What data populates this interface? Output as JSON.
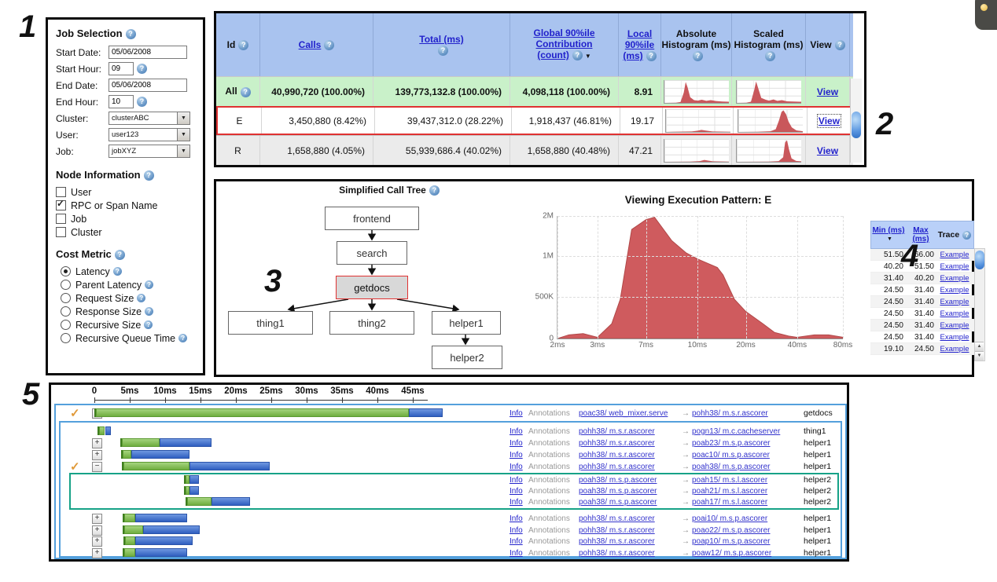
{
  "ui": {
    "help_glyph": "?",
    "check_glyph": "✓",
    "sort_glyph": "▼",
    "dropdown_glyph": "▼",
    "scroll_up_glyph": "▲",
    "scroll_down_glyph": "▼",
    "arrow_glyph": "→"
  },
  "figure_numbers": {
    "one": "1",
    "two": "2",
    "three": "3",
    "four": "4",
    "five": "5"
  },
  "job_selection": {
    "title": "Job Selection",
    "start_date": {
      "label": "Start Date:",
      "value": "05/06/2008"
    },
    "start_hour": {
      "label": "Start Hour:",
      "value": "09"
    },
    "end_date": {
      "label": "End Date:",
      "value": "05/06/2008"
    },
    "end_hour": {
      "label": "End Hour:",
      "value": "10"
    },
    "cluster": {
      "label": "Cluster:",
      "value": "clusterABC"
    },
    "user": {
      "label": "User:",
      "value": "user123"
    },
    "job": {
      "label": "Job:",
      "value": "jobXYZ"
    }
  },
  "node_information": {
    "title": "Node Information",
    "options": [
      {
        "label": "User",
        "checked": false
      },
      {
        "label": "RPC or Span Name",
        "checked": true
      },
      {
        "label": "Job",
        "checked": false
      },
      {
        "label": "Cluster",
        "checked": false
      }
    ]
  },
  "cost_metric": {
    "title": "Cost Metric",
    "options": [
      {
        "label": "Latency",
        "selected": true
      },
      {
        "label": "Parent Latency",
        "selected": false
      },
      {
        "label": "Request Size",
        "selected": false
      },
      {
        "label": "Response Size",
        "selected": false
      },
      {
        "label": "Recursive Size",
        "selected": false
      },
      {
        "label": "Recursive Queue Time",
        "selected": false
      }
    ]
  },
  "summary_table": {
    "headers": {
      "id": "Id",
      "calls": "Calls",
      "total": "Total (ms)",
      "global": "Global 90%ile Contribution (count)",
      "local": "Local 90%ile (ms)",
      "abs": "Absolute Histogram (ms)",
      "scaled": "Scaled Histogram (ms)",
      "view": "View"
    },
    "rows": [
      {
        "id": "All",
        "calls": "40,990,720 (100.00%)",
        "total": "139,773,132.8 (100.00%)",
        "global": "4,098,118 (100.00%)",
        "local": "8.91",
        "view": "View",
        "abs_hist": [
          [
            0,
            100
          ],
          [
            18,
            99
          ],
          [
            25,
            96
          ],
          [
            30,
            55
          ],
          [
            33,
            8
          ],
          [
            36,
            32
          ],
          [
            40,
            75
          ],
          [
            46,
            88
          ],
          [
            52,
            90
          ],
          [
            58,
            86
          ],
          [
            65,
            91
          ],
          [
            72,
            88
          ],
          [
            80,
            92
          ],
          [
            90,
            94
          ],
          [
            100,
            95
          ],
          [
            100,
            100
          ]
        ],
        "scaled_hist": [
          [
            0,
            100
          ],
          [
            15,
            99
          ],
          [
            22,
            95
          ],
          [
            27,
            45
          ],
          [
            30,
            6
          ],
          [
            34,
            42
          ],
          [
            38,
            78
          ],
          [
            45,
            86
          ],
          [
            50,
            90
          ],
          [
            57,
            85
          ],
          [
            63,
            91
          ],
          [
            70,
            88
          ],
          [
            78,
            93
          ],
          [
            100,
            95
          ],
          [
            100,
            100
          ]
        ]
      },
      {
        "id": "E",
        "calls": "3,450,880 (8.42%)",
        "total": "39,437,312.0 (28.22%)",
        "global": "1,918,437 (46.81%)",
        "local": "19.17",
        "view": "View",
        "abs_hist": [
          [
            0,
            100
          ],
          [
            10,
            99
          ],
          [
            40,
            98
          ],
          [
            48,
            95
          ],
          [
            55,
            91
          ],
          [
            62,
            94
          ],
          [
            72,
            98
          ],
          [
            100,
            99
          ],
          [
            100,
            100
          ]
        ],
        "scaled_hist": [
          [
            0,
            100
          ],
          [
            30,
            99
          ],
          [
            50,
            97
          ],
          [
            58,
            88
          ],
          [
            63,
            50
          ],
          [
            67,
            12
          ],
          [
            70,
            5
          ],
          [
            74,
            22
          ],
          [
            78,
            55
          ],
          [
            83,
            80
          ],
          [
            90,
            93
          ],
          [
            100,
            97
          ],
          [
            100,
            100
          ]
        ]
      },
      {
        "id": "R",
        "calls": "1,658,880 (4.05%)",
        "total": "55,939,686.4 (40.02%)",
        "global": "1,658,880 (40.48%)",
        "local": "47.21",
        "view": "View",
        "abs_hist": [
          [
            0,
            100
          ],
          [
            40,
            99
          ],
          [
            55,
            97
          ],
          [
            62,
            92
          ],
          [
            68,
            95
          ],
          [
            75,
            98
          ],
          [
            100,
            99
          ],
          [
            100,
            100
          ]
        ],
        "scaled_hist": [
          [
            0,
            100
          ],
          [
            50,
            99
          ],
          [
            65,
            97
          ],
          [
            72,
            80
          ],
          [
            75,
            15
          ],
          [
            78,
            5
          ],
          [
            81,
            45
          ],
          [
            85,
            85
          ],
          [
            92,
            96
          ],
          [
            100,
            98
          ],
          [
            100,
            100
          ]
        ]
      }
    ],
    "partial_row": {
      "abs_hist": [
        [
          0,
          100
        ],
        [
          30,
          100
        ],
        [
          33,
          10
        ],
        [
          37,
          100
        ]
      ],
      "scaled_hist": [
        [
          0,
          100
        ],
        [
          40,
          100
        ],
        [
          44,
          5
        ],
        [
          48,
          100
        ]
      ]
    }
  },
  "call_tree": {
    "title": "Simplified Call Tree",
    "nodes": {
      "frontend": "frontend",
      "search": "search",
      "getdocs": "getdocs",
      "thing1": "thing1",
      "thing2": "thing2",
      "helper1": "helper1",
      "helper2": "helper2"
    }
  },
  "chart_data": {
    "type": "area",
    "title": "Viewing Execution Pattern: E",
    "x_ticks": [
      {
        "label": "2ms",
        "pos": 0
      },
      {
        "label": "3ms",
        "pos": 14
      },
      {
        "label": "7ms",
        "pos": 31
      },
      {
        "label": "10ms",
        "pos": 49
      },
      {
        "label": "20ms",
        "pos": 66
      },
      {
        "label": "40ms",
        "pos": 84
      },
      {
        "label": "80ms",
        "pos": 100
      }
    ],
    "y_ticks": [
      {
        "label": "2M",
        "pos": 0
      },
      {
        "label": "1M",
        "pos": 33
      },
      {
        "label": "500K",
        "pos": 66
      },
      {
        "label": "0",
        "pos": 100
      }
    ],
    "x_scale": "log",
    "ylim": [
      0,
      2000000
    ],
    "points": [
      [
        0,
        100
      ],
      [
        4,
        97
      ],
      [
        9,
        96
      ],
      [
        14,
        99
      ],
      [
        19,
        88
      ],
      [
        22,
        68
      ],
      [
        26,
        11
      ],
      [
        31,
        3
      ],
      [
        34,
        1
      ],
      [
        40,
        20
      ],
      [
        45,
        30
      ],
      [
        49,
        35
      ],
      [
        52,
        38
      ],
      [
        56,
        42
      ],
      [
        58,
        48
      ],
      [
        62,
        68
      ],
      [
        66,
        78
      ],
      [
        72,
        88
      ],
      [
        76,
        95
      ],
      [
        81,
        98
      ],
      [
        84,
        99
      ],
      [
        90,
        97
      ],
      [
        95,
        97
      ],
      [
        100,
        99
      ],
      [
        100,
        100
      ]
    ]
  },
  "trace_table": {
    "headers": {
      "min": "Min (ms)",
      "max": "Max (ms)",
      "trace": "Trace"
    },
    "rows": [
      {
        "min": "51.50",
        "max": "66.00",
        "trace": "Example"
      },
      {
        "min": "40.20",
        "max": "51.50",
        "trace": "Example"
      },
      {
        "min": "31.40",
        "max": "40.20",
        "trace": "Example"
      },
      {
        "min": "24.50",
        "max": "31.40",
        "trace": "Example"
      },
      {
        "min": "24.50",
        "max": "31.40",
        "trace": "Example"
      },
      {
        "min": "24.50",
        "max": "31.40",
        "trace": "Example"
      },
      {
        "min": "24.50",
        "max": "31.40",
        "trace": "Example"
      },
      {
        "min": "24.50",
        "max": "31.40",
        "trace": "Example"
      },
      {
        "min": "19.10",
        "max": "24.50",
        "trace": "Example"
      }
    ]
  },
  "timeline": {
    "info_label": "Info",
    "annotations_label": "Annotations",
    "axis_ticks": [
      {
        "label": "0",
        "ms": 0
      },
      {
        "label": "5ms",
        "ms": 5
      },
      {
        "label": "10ms",
        "ms": 10
      },
      {
        "label": "15ms",
        "ms": 15
      },
      {
        "label": "20ms",
        "ms": 20
      },
      {
        "label": "25ms",
        "ms": 25
      },
      {
        "label": "30ms",
        "ms": 30
      },
      {
        "label": "35ms",
        "ms": 35
      },
      {
        "label": "40ms",
        "ms": 40
      },
      {
        "label": "45ms",
        "ms": 45
      }
    ],
    "rows": [
      {
        "check": true,
        "expander": "−",
        "g0": 0.2,
        "g1": 44.4,
        "b1": 49.2,
        "src": "poac38/ web_mixer.serve",
        "dst": "pohh38/ m.s.r.ascorer",
        "name": "getdocs"
      },
      {
        "check": false,
        "expander": "",
        "g0": 0.7,
        "g1": 1.5,
        "b1": 2.3,
        "src": "pohh38/ m.s.r.ascorer",
        "dst": "pogn13/ m.c.cacheserver",
        "name": "thing1"
      },
      {
        "check": false,
        "expander": "+",
        "g0": 3.9,
        "g1": 9.2,
        "b1": 16.6,
        "src": "pohh38/ m.s.r.ascorer",
        "dst": "poab23/ m.s.p.ascorer",
        "name": "helper1"
      },
      {
        "check": false,
        "expander": "+",
        "g0": 4.0,
        "g1": 5.2,
        "b1": 13.4,
        "src": "pohh38/ m.s.r.ascorer",
        "dst": "poac10/ m.s.p.ascorer",
        "name": "helper1"
      },
      {
        "check": true,
        "expander": "−",
        "g0": 4.1,
        "g1": 13.4,
        "b1": 24.8,
        "src": "pohh38/ m.s.r.ascorer",
        "dst": "poah38/ m.s.p.ascorer",
        "name": "helper1"
      },
      {
        "check": false,
        "expander": "",
        "g0": 12.9,
        "g1": 13.4,
        "b1": 14.8,
        "src": "poah38/ m.s.p.ascorer",
        "dst": "poah15/ m.s.l.ascorer",
        "name": "helper2"
      },
      {
        "check": false,
        "expander": "",
        "g0": 12.9,
        "g1": 13.4,
        "b1": 14.8,
        "src": "poah38/ m.s.p.ascorer",
        "dst": "poah21/ m.s.l.ascorer",
        "name": "helper2"
      },
      {
        "check": false,
        "expander": "",
        "g0": 13.1,
        "g1": 16.6,
        "b1": 22.0,
        "src": "poah38/ m.s.p.ascorer",
        "dst": "poah17/ m.s.l.ascorer",
        "name": "helper2"
      },
      {
        "check": false,
        "expander": "+",
        "g0": 4.2,
        "g1": 5.8,
        "b1": 13.1,
        "src": "pohh38/ m.s.r.ascorer",
        "dst": "poai10/ m.s.p.ascorer",
        "name": "helper1"
      },
      {
        "check": false,
        "expander": "+",
        "g0": 4.2,
        "g1": 6.9,
        "b1": 14.9,
        "src": "pohh38/ m.s.r.ascorer",
        "dst": "poao22/ m.s.p.ascorer",
        "name": "helper1"
      },
      {
        "check": false,
        "expander": "+",
        "g0": 4.3,
        "g1": 5.8,
        "b1": 13.9,
        "src": "pohh38/ m.s.r.ascorer",
        "dst": "poap10/ m.s.p.ascorer",
        "name": "helper1"
      },
      {
        "check": false,
        "expander": "+",
        "g0": 4.2,
        "g1": 5.8,
        "b1": 13.1,
        "src": "pohh38/ m.s.r.ascorer",
        "dst": "poaw12/ m.s.p.ascorer",
        "name": "helper1"
      }
    ]
  },
  "colors": {
    "header_blue": "#a9c3ef",
    "row_green": "#c9f1c9",
    "row_gray": "#ebebeb",
    "highlight_red": "#e03232",
    "histogram_red": "#c9575b",
    "area_red": "#cf5b5e",
    "gantt_green": "#7cbd4e",
    "gantt_blue": "#3b6fd0",
    "group_blue": "#54a0dc",
    "group_green": "#17a287",
    "link_blue": "#2222cc",
    "check_orange": "#e09a3a"
  }
}
